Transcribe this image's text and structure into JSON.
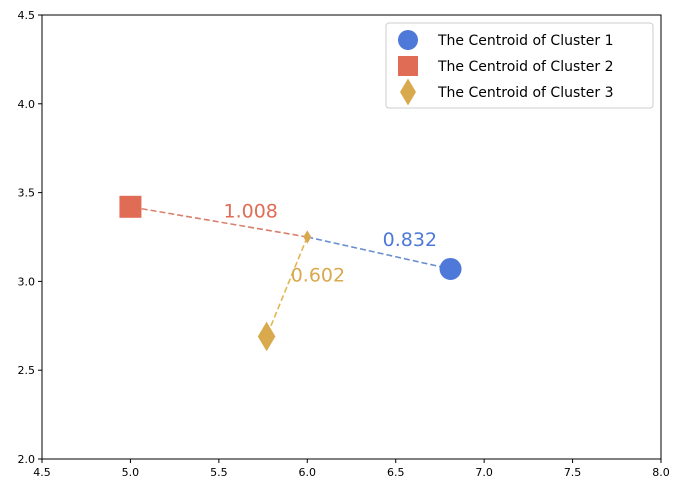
{
  "chart_data": {
    "type": "scatter",
    "title": "",
    "xlabel": "",
    "ylabel": "",
    "xlim": [
      4.5,
      8.0
    ],
    "ylim": [
      2.0,
      4.5
    ],
    "xticks": [
      "4.5",
      "5.0",
      "5.5",
      "6.0",
      "6.5",
      "7.0",
      "7.5",
      "8.0"
    ],
    "yticks": [
      "2.0",
      "2.5",
      "3.0",
      "3.5",
      "4.0",
      "4.5"
    ],
    "grid": false,
    "legend_placement": "upper right",
    "center_point": {
      "x": 6.0,
      "y": 3.25,
      "marker": "diamond",
      "color": "#d9a94e"
    },
    "series": [
      {
        "name": "The Centroid of Cluster 1",
        "marker": "circle",
        "color": "#4f79d9",
        "line_color": "#6a8fd0",
        "x": 6.81,
        "y": 3.07,
        "distance_label": "0.832",
        "label_pos": [
          6.58,
          3.2
        ]
      },
      {
        "name": "The Centroid of Cluster 2",
        "marker": "square",
        "color": "#e06c55",
        "line_color": "#d9806d",
        "x": 5.0,
        "y": 3.42,
        "distance_label": "1.008",
        "label_pos": [
          5.68,
          3.36
        ]
      },
      {
        "name": "The Centroid of Cluster 3",
        "marker": "diamond",
        "color": "#d9a94e",
        "line_color": "#e2b752",
        "x": 5.77,
        "y": 2.69,
        "distance_label": "0.602",
        "label_pos": [
          6.06,
          3.0
        ]
      }
    ]
  }
}
